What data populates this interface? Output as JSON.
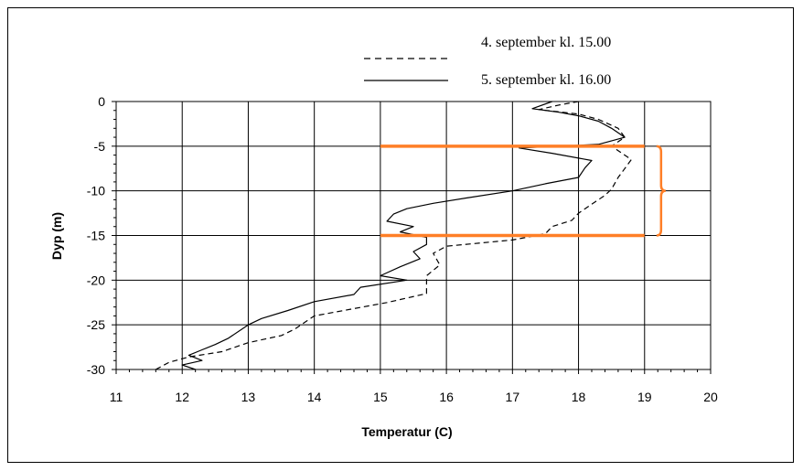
{
  "chart_data": {
    "type": "line",
    "title": "",
    "xlabel": "Temperatur (C)",
    "ylabel": "Dyp (m)",
    "xlim": [
      11,
      20
    ],
    "ylim": [
      -30,
      0
    ],
    "xticks": [
      "11",
      "12",
      "13",
      "14",
      "15",
      "16",
      "17",
      "18",
      "19",
      "20"
    ],
    "yticks": [
      "0",
      "-5",
      "-10",
      "-15",
      "-20",
      "-25",
      "-30"
    ],
    "grid": true,
    "legend_position": "top",
    "series": [
      {
        "name": "4. september kl. 15.00",
        "style": "dashed",
        "color": "#000000",
        "points": [
          [
            18.0,
            0
          ],
          [
            17.7,
            -0.4
          ],
          [
            17.4,
            -0.9
          ],
          [
            18.0,
            -1.4
          ],
          [
            18.3,
            -2.0
          ],
          [
            18.6,
            -3.0
          ],
          [
            18.7,
            -4.0
          ],
          [
            18.5,
            -5.0
          ],
          [
            18.6,
            -5.5
          ],
          [
            18.8,
            -6.5
          ],
          [
            18.7,
            -7.5
          ],
          [
            18.6,
            -8.5
          ],
          [
            18.5,
            -9.8
          ],
          [
            18.4,
            -10.5
          ],
          [
            18.2,
            -11.5
          ],
          [
            18.0,
            -12.5
          ],
          [
            17.9,
            -13.3
          ],
          [
            17.6,
            -14.0
          ],
          [
            17.5,
            -14.8
          ],
          [
            17.0,
            -15.5
          ],
          [
            16.0,
            -16.2
          ],
          [
            15.8,
            -17.0
          ],
          [
            15.9,
            -18.3
          ],
          [
            15.7,
            -19.5
          ],
          [
            15.7,
            -20.5
          ],
          [
            15.7,
            -21.5
          ],
          [
            15.1,
            -22.5
          ],
          [
            14.0,
            -24.0
          ],
          [
            13.7,
            -25.5
          ],
          [
            13.5,
            -26.2
          ],
          [
            13.0,
            -27.0
          ],
          [
            12.6,
            -28.0
          ],
          [
            12.1,
            -28.6
          ],
          [
            11.8,
            -29.2
          ],
          [
            11.6,
            -30.0
          ]
        ]
      },
      {
        "name": "5. september kl. 16.00",
        "style": "solid",
        "color": "#000000",
        "points": [
          [
            17.6,
            0
          ],
          [
            17.3,
            -0.8
          ],
          [
            17.7,
            -1.2
          ],
          [
            18.0,
            -1.6
          ],
          [
            18.3,
            -2.2
          ],
          [
            18.5,
            -3.0
          ],
          [
            18.7,
            -4.0
          ],
          [
            18.3,
            -4.8
          ],
          [
            17.1,
            -5.2
          ],
          [
            17.6,
            -5.8
          ],
          [
            18.2,
            -6.6
          ],
          [
            18.1,
            -7.4
          ],
          [
            18.0,
            -8.5
          ],
          [
            17.5,
            -9.2
          ],
          [
            17.0,
            -10.0
          ],
          [
            16.3,
            -10.8
          ],
          [
            15.8,
            -11.4
          ],
          [
            15.4,
            -12.0
          ],
          [
            15.2,
            -12.6
          ],
          [
            15.1,
            -13.4
          ],
          [
            15.5,
            -14.0
          ],
          [
            15.3,
            -14.6
          ],
          [
            15.7,
            -15.2
          ],
          [
            15.7,
            -16.0
          ],
          [
            15.5,
            -16.8
          ],
          [
            15.6,
            -17.6
          ],
          [
            15.3,
            -18.5
          ],
          [
            15.0,
            -19.5
          ],
          [
            15.4,
            -20.0
          ],
          [
            14.7,
            -20.8
          ],
          [
            14.6,
            -21.6
          ],
          [
            14.0,
            -22.4
          ],
          [
            13.6,
            -23.4
          ],
          [
            13.2,
            -24.3
          ],
          [
            13.0,
            -25.0
          ],
          [
            12.7,
            -26.5
          ],
          [
            12.5,
            -27.2
          ],
          [
            12.3,
            -27.8
          ],
          [
            12.1,
            -28.4
          ],
          [
            12.3,
            -29.0
          ],
          [
            12.0,
            -29.5
          ],
          [
            12.2,
            -30.0
          ]
        ]
      }
    ],
    "annotations": {
      "color": "#ff7f27",
      "box": {
        "x0": 15.0,
        "x1": 19.0,
        "y_top": -5.0,
        "y_bottom": -15.0
      },
      "brace": {
        "x": 19.25,
        "y_top": -5.0,
        "y_bottom": -15.0,
        "y_mid": -10.0
      }
    }
  }
}
